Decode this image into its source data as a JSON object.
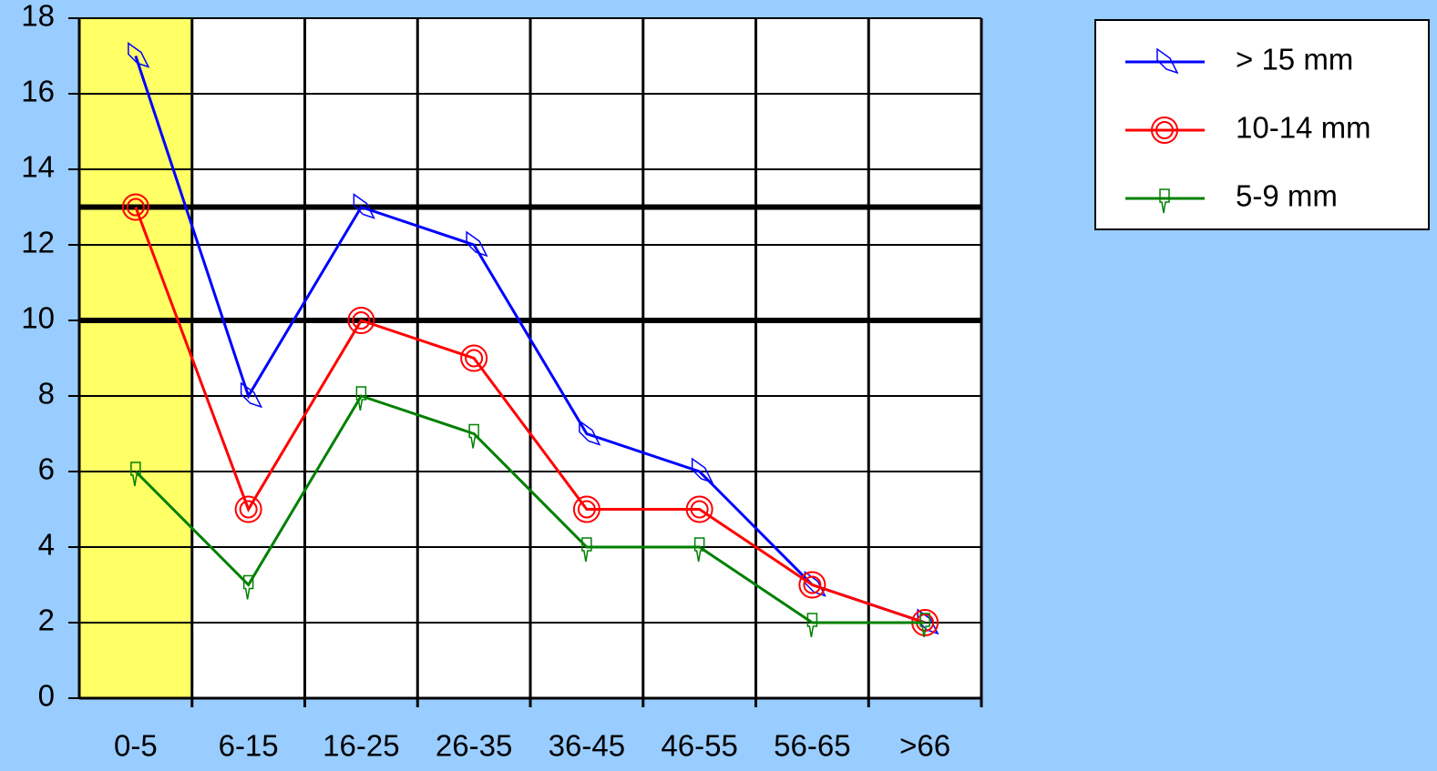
{
  "chart_data": {
    "type": "line",
    "categories": [
      "0-5",
      "6-15",
      "16-25",
      "26-35",
      "36-45",
      "46-55",
      "56-65",
      ">66"
    ],
    "series": [
      {
        "name": "> 15 mm",
        "color": "#0000ff",
        "values": [
          17,
          8,
          13,
          12,
          7,
          6,
          3,
          2
        ]
      },
      {
        "name": "10-14 mm",
        "color": "#ff0000",
        "values": [
          13,
          5,
          10,
          9,
          5,
          5,
          3,
          2
        ]
      },
      {
        "name": "5-9 mm",
        "color": "#008000",
        "values": [
          6,
          3,
          8,
          7,
          4,
          4,
          2,
          2
        ]
      }
    ],
    "ylim": [
      0,
      18
    ],
    "yticks": [
      0,
      2,
      4,
      6,
      8,
      10,
      12,
      14,
      16,
      18
    ],
    "reference_lines": [
      13,
      10
    ],
    "grid": true,
    "legend": "top-right"
  }
}
